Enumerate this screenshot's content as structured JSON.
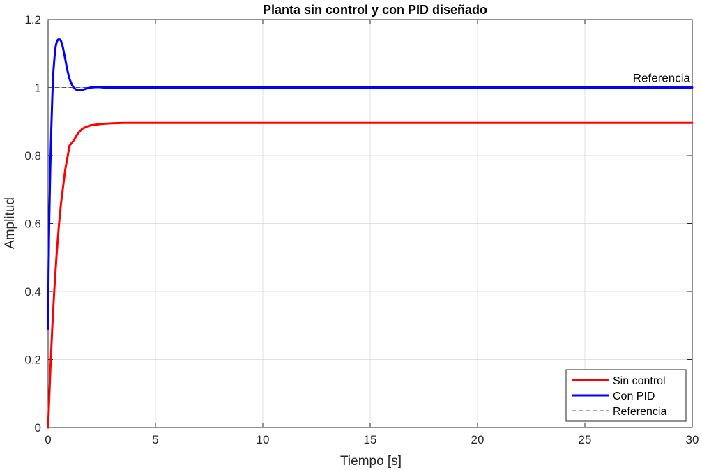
{
  "chart_data": {
    "type": "line",
    "title": "Planta sin control y con PID diseñado",
    "xlabel": "Tiempo [s]",
    "ylabel": "Amplitud",
    "xlim": [
      0,
      30
    ],
    "ylim": [
      0,
      1.2
    ],
    "xticks": [
      0,
      5,
      10,
      15,
      20,
      25,
      30
    ],
    "xtick_labels": [
      "0",
      "5",
      "10",
      "15",
      "20",
      "25",
      "30"
    ],
    "yticks": [
      0,
      0.2,
      0.4,
      0.6,
      0.8,
      1,
      1.2
    ],
    "ytick_labels": [
      "0",
      "0.2",
      "0.4",
      "0.6",
      "0.8",
      "1",
      "1.2"
    ],
    "grid": true,
    "legend_position": "bottom-right",
    "series": [
      {
        "name": "Sin control",
        "color": "#ff0000",
        "style": "solid",
        "x": [
          0,
          0.1,
          0.2,
          0.3,
          0.4,
          0.5,
          0.6,
          0.8,
          1.0,
          1.2,
          1.4,
          1.6,
          1.8,
          2.0,
          2.5,
          3.0,
          3.5,
          4.0,
          5.0,
          6.0,
          8.0,
          10,
          15,
          20,
          25,
          30
        ],
        "y": [
          0,
          0.164,
          0.302,
          0.416,
          0.512,
          0.592,
          0.659,
          0.759,
          0.829,
          0.845,
          0.866,
          0.879,
          0.885,
          0.889,
          0.893,
          0.895,
          0.896,
          0.896,
          0.896,
          0.896,
          0.896,
          0.896,
          0.896,
          0.896,
          0.896,
          0.896
        ]
      },
      {
        "name": "Con PID",
        "color": "#0000ff",
        "style": "solid",
        "x": [
          0,
          0.02,
          0.05,
          0.1,
          0.15,
          0.2,
          0.25,
          0.3,
          0.35,
          0.4,
          0.45,
          0.5,
          0.55,
          0.6,
          0.65,
          0.7,
          0.8,
          0.9,
          1.0,
          1.1,
          1.2,
          1.3,
          1.4,
          1.5,
          1.6,
          1.7,
          1.8,
          1.9,
          2.0,
          2.2,
          2.4,
          2.6,
          2.8,
          3.0,
          4.0,
          5.0,
          10,
          15,
          20,
          25,
          30
        ],
        "y": [
          0.29,
          0.45,
          0.6,
          0.76,
          0.88,
          0.98,
          1.05,
          1.09,
          1.12,
          1.134,
          1.14,
          1.142,
          1.141,
          1.137,
          1.128,
          1.115,
          1.083,
          1.05,
          1.025,
          1.009,
          0.999,
          0.994,
          0.992,
          0.992,
          0.993,
          0.995,
          0.997,
          0.999,
          1.0,
          1.001,
          1.001,
          1.0,
          1.0,
          1.0,
          1.0,
          1.0,
          1.0,
          1.0,
          1.0,
          1.0,
          1.0
        ]
      },
      {
        "name": "Referencia",
        "color": "#555555",
        "style": "dashed",
        "x": [
          0,
          30
        ],
        "y": [
          1,
          1
        ]
      }
    ],
    "annotations": [
      {
        "text": "Referencia",
        "x": 30,
        "y": 1,
        "anchor": "end"
      }
    ]
  }
}
